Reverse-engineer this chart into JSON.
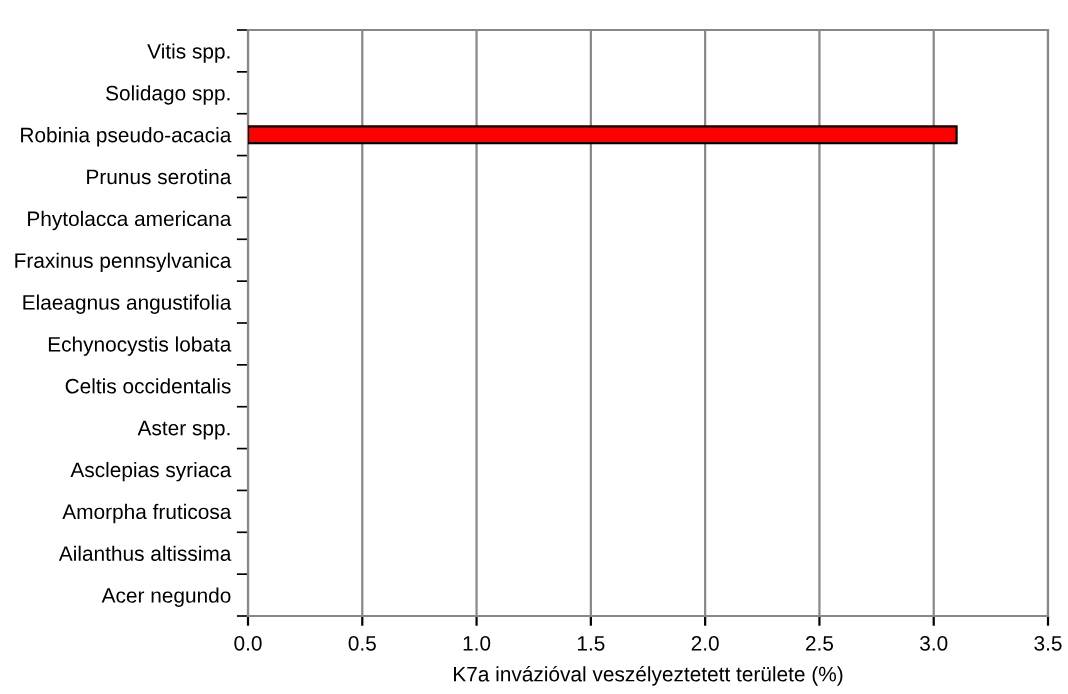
{
  "chart_data": {
    "type": "bar",
    "orientation": "horizontal",
    "xlabel": "K7a invázióval veszélyeztetett területe (%)",
    "categories": [
      "Vitis spp.",
      "Solidago spp.",
      "Robinia pseudo-acacia",
      "Prunus serotina",
      "Phytolacca americana",
      "Fraxinus pennsylvanica",
      "Elaeagnus angustifolia",
      "Echynocystis lobata",
      "Celtis occidentalis",
      "Aster spp.",
      "Asclepias syriaca",
      "Amorpha fruticosa",
      "Ailanthus altissima",
      "Acer negundo"
    ],
    "values": [
      0,
      0,
      3.1,
      0,
      0,
      0,
      0,
      0,
      0,
      0,
      0,
      0,
      0,
      0
    ],
    "color": "#ff0000",
    "xlim": [
      0,
      3.5
    ],
    "xticks": [
      {
        "value": 0,
        "label": "0.0"
      },
      0.5,
      {
        "value": 1,
        "label": "1.0"
      },
      1.5,
      {
        "value": 2,
        "label": "2.0"
      },
      2.5,
      {
        "value": 3,
        "label": "3.0"
      },
      3.5
    ],
    "grid": "x"
  }
}
